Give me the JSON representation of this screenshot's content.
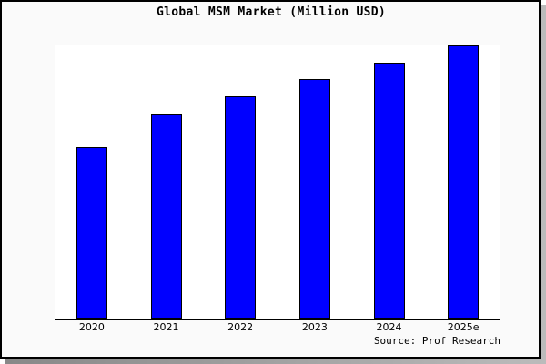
{
  "chart_data": {
    "type": "bar",
    "title": "Global MSM Market (Million USD)",
    "xlabel": "",
    "ylabel": "",
    "categories": [
      "2020",
      "2021",
      "2022",
      "2023",
      "2024",
      "2025e"
    ],
    "values": [
      188,
      225,
      244,
      263,
      281,
      300
    ],
    "value_note": "relative bar heights in pixels (no y-axis scale shown)",
    "ylim": [
      0,
      300
    ],
    "grid": false,
    "legend": null,
    "bar_color": "#0000ff",
    "source": "Source: Prof Research"
  }
}
